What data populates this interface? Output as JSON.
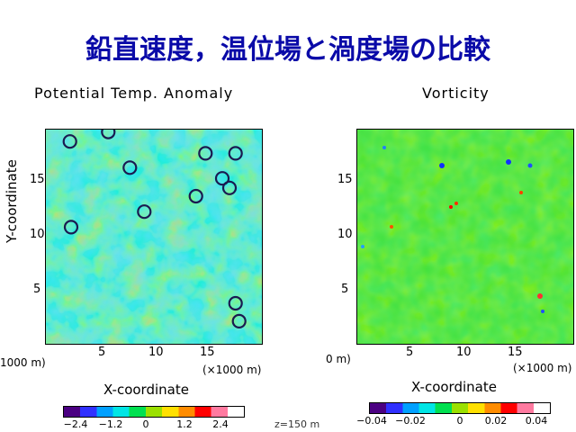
{
  "title": "鉛直速度，温位場と渦度場の比較",
  "chart_data": [
    {
      "type": "heatmap",
      "title": "Potential Temp. Anomaly",
      "xlabel": "X-coordinate",
      "ylabel": "Y-coordinate",
      "x_unit": "(×1000 m)",
      "x_unit_left_fragment": "1000 m)",
      "xticks": [
        5,
        10,
        15
      ],
      "yticks": [
        5,
        10,
        15
      ],
      "xlim": [
        1,
        19
      ],
      "ylim": [
        1,
        19
      ],
      "colorbar_ticks": [
        "−2.4",
        "−1.2",
        "0",
        "1.2",
        "2.4"
      ],
      "colorbar_range": [
        -3,
        3
      ],
      "circles": [
        {
          "x": 3.0,
          "y": 18.0
        },
        {
          "x": 6.2,
          "y": 18.8
        },
        {
          "x": 8.0,
          "y": 15.8
        },
        {
          "x": 14.3,
          "y": 17.0
        },
        {
          "x": 16.8,
          "y": 17.0
        },
        {
          "x": 15.7,
          "y": 14.9
        },
        {
          "x": 16.3,
          "y": 14.1
        },
        {
          "x": 13.5,
          "y": 13.4
        },
        {
          "x": 9.2,
          "y": 12.1
        },
        {
          "x": 3.1,
          "y": 10.8
        },
        {
          "x": 16.8,
          "y": 4.4
        },
        {
          "x": 17.1,
          "y": 2.9
        }
      ]
    },
    {
      "type": "heatmap",
      "title": "Vorticity",
      "xlabel": "X-coordinate",
      "ylabel": "",
      "x_unit": "(×1000 m)",
      "x_unit_left_fragment": "0 m)",
      "xticks": [
        5,
        10,
        15
      ],
      "yticks": [
        5,
        10,
        15
      ],
      "xlim": [
        1,
        19
      ],
      "ylim": [
        1,
        19
      ],
      "colorbar_ticks": [
        "−0.04",
        "−0.02",
        "0",
        "0.02",
        "0.04"
      ],
      "colorbar_range": [
        -0.05,
        0.05
      ]
    }
  ],
  "z_label": "z=150 m",
  "colorbar_colors": [
    "#4b0082",
    "#3030ff",
    "#00a0ff",
    "#00e5e5",
    "#00e050",
    "#9be000",
    "#ffe000",
    "#ff8c00",
    "#ff0000",
    "#ff7aa0",
    "#ffffff"
  ]
}
